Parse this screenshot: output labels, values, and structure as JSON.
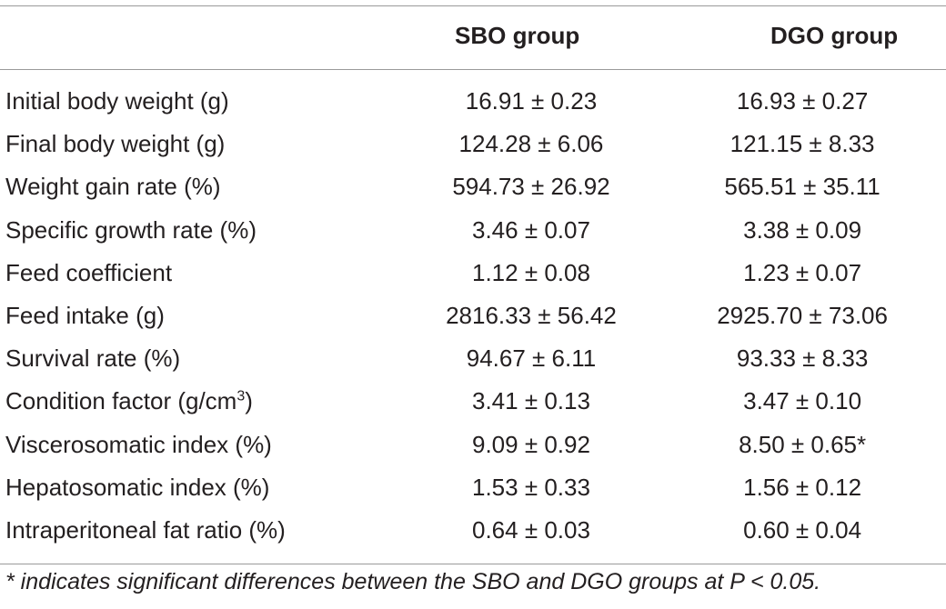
{
  "table": {
    "headers": [
      "",
      "SBO group",
      "DGO group"
    ],
    "rows": [
      {
        "label": "Initial body weight (g)",
        "sbo": "16.91 ± 0.23",
        "dgo": "16.93 ± 0.27"
      },
      {
        "label": "Final body weight (g)",
        "sbo": "124.28 ± 6.06",
        "dgo": "121.15 ± 8.33"
      },
      {
        "label": "Weight gain rate (%)",
        "sbo": "594.73 ± 26.92",
        "dgo": "565.51 ± 35.11"
      },
      {
        "label": "Specific growth rate (%)",
        "sbo": "3.46 ± 0.07",
        "dgo": "3.38 ± 0.09"
      },
      {
        "label": "Feed coefficient",
        "sbo": "1.12 ± 0.08",
        "dgo": "1.23 ± 0.07"
      },
      {
        "label": "Feed intake (g)",
        "sbo": "2816.33 ± 56.42",
        "dgo": "2925.70 ± 73.06"
      },
      {
        "label": "Survival rate (%)",
        "sbo": "94.67 ± 6.11",
        "dgo": "93.33 ± 8.33"
      },
      {
        "label_prefix": "Condition factor (g/cm",
        "label_sup": "3",
        "label_suffix": ")",
        "sbo": "3.41 ± 0.13",
        "dgo": "3.47 ± 0.10"
      },
      {
        "label": "Viscerosomatic index (%)",
        "sbo": "9.09 ± 0.92",
        "dgo": "8.50 ± 0.65*"
      },
      {
        "label": "Hepatosomatic index (%)",
        "sbo": "1.53 ± 0.33",
        "dgo": "1.56 ± 0.12"
      },
      {
        "label": "Intraperitoneal fat ratio (%)",
        "sbo": "0.64 ± 0.03",
        "dgo": "0.60 ± 0.04"
      }
    ]
  },
  "footnote": "* indicates significant differences between the SBO and DGO groups at P < 0.05."
}
